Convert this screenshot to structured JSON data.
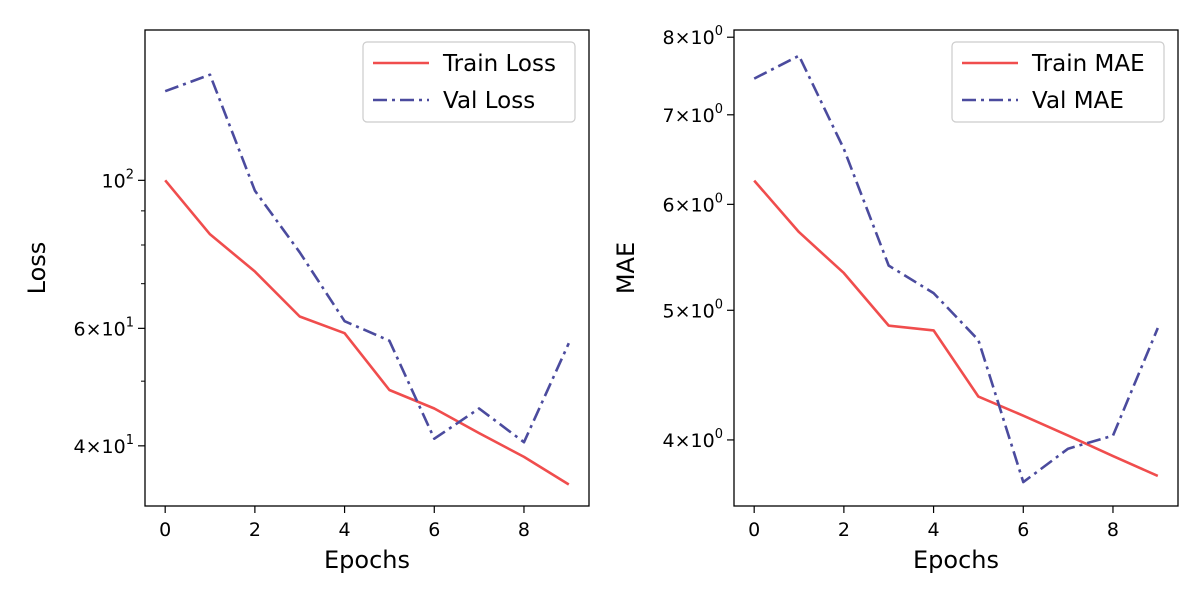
{
  "chart_data": [
    {
      "type": "line",
      "x": [
        0,
        1,
        2,
        3,
        4,
        5,
        6,
        7,
        8,
        9
      ],
      "xlabel": "Epochs",
      "ylabel": "Loss",
      "xlim": [
        -0.45,
        9.45
      ],
      "ylim": [
        32.5,
        168.0
      ],
      "yscale": "log",
      "grid": false,
      "legend_position": "top-right",
      "x_ticks": [
        0,
        2,
        4,
        6,
        8
      ],
      "x_tick_labels": [
        "0",
        "2",
        "4",
        "6",
        "8"
      ],
      "y_ticks": [
        {
          "value": 40,
          "base": "4",
          "exp": "1"
        },
        {
          "value": 60,
          "base": "6",
          "exp": "1"
        },
        {
          "value": 100,
          "base": "",
          "exp": "2"
        }
      ],
      "y_minor_ticks": [
        50,
        70,
        80,
        90
      ],
      "series": [
        {
          "name": "Train Loss",
          "style": "solid",
          "color": "#f04d4d",
          "values": [
            100,
            83,
            73,
            62.5,
            59,
            48.5,
            45.5,
            41.8,
            38.5,
            35
          ]
        },
        {
          "name": "Val Loss",
          "style": "dashdot",
          "color": "#4b4b9e",
          "values": [
            136,
            144,
            96.5,
            78,
            61.5,
            57.5,
            41,
            45.5,
            40.5,
            57
          ]
        }
      ]
    },
    {
      "type": "line",
      "x": [
        0,
        1,
        2,
        3,
        4,
        5,
        6,
        7,
        8,
        9
      ],
      "xlabel": "Epochs",
      "ylabel": "MAE",
      "xlim": [
        -0.45,
        9.45
      ],
      "ylim": [
        3.57,
        8.1
      ],
      "yscale": "log",
      "grid": false,
      "legend_position": "top-right",
      "x_ticks": [
        0,
        2,
        4,
        6,
        8
      ],
      "x_tick_labels": [
        "0",
        "2",
        "4",
        "6",
        "8"
      ],
      "y_ticks": [
        {
          "value": 4,
          "base": "4",
          "exp": "0"
        },
        {
          "value": 5,
          "base": "5",
          "exp": "0"
        },
        {
          "value": 6,
          "base": "6",
          "exp": "0"
        },
        {
          "value": 7,
          "base": "7",
          "exp": "0"
        },
        {
          "value": 8,
          "base": "8",
          "exp": "0"
        }
      ],
      "y_minor_ticks": [],
      "series": [
        {
          "name": "Train MAE",
          "style": "solid",
          "color": "#f04d4d",
          "values": [
            6.25,
            5.72,
            5.33,
            4.87,
            4.83,
            4.31,
            4.17,
            4.03,
            3.89,
            3.76
          ]
        },
        {
          "name": "Val MAE",
          "style": "dashdot",
          "color": "#4b4b9e",
          "values": [
            7.45,
            7.75,
            6.6,
            5.4,
            5.15,
            4.75,
            3.72,
            3.94,
            4.03,
            4.85
          ]
        }
      ]
    }
  ]
}
